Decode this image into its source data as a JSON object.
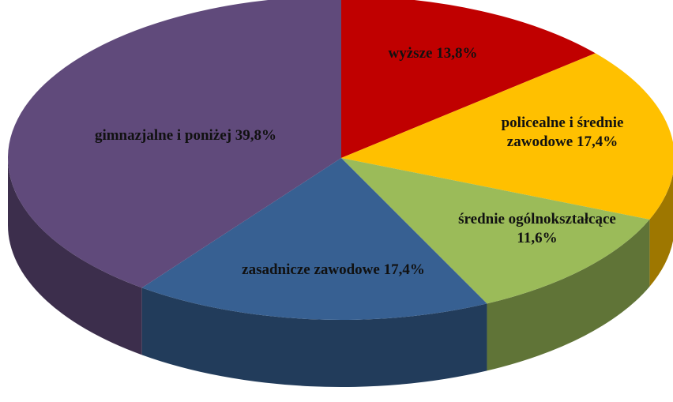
{
  "chart_data": {
    "type": "pie",
    "categories": [
      "wyższe",
      "policealne i średnie zawodowe",
      "średnie ogólnokształcące",
      "zasadnicze zawodowe",
      "gimnazjalne i poniżej"
    ],
    "values": [
      13.8,
      17.4,
      11.6,
      17.4,
      39.8
    ],
    "value_labels": [
      "13,8%",
      "17,4%",
      "11,6%",
      "17,4%",
      "39,8%"
    ],
    "colors": [
      "#c00000",
      "#ffc000",
      "#9bbb59",
      "#376092",
      "#604a7b"
    ]
  }
}
